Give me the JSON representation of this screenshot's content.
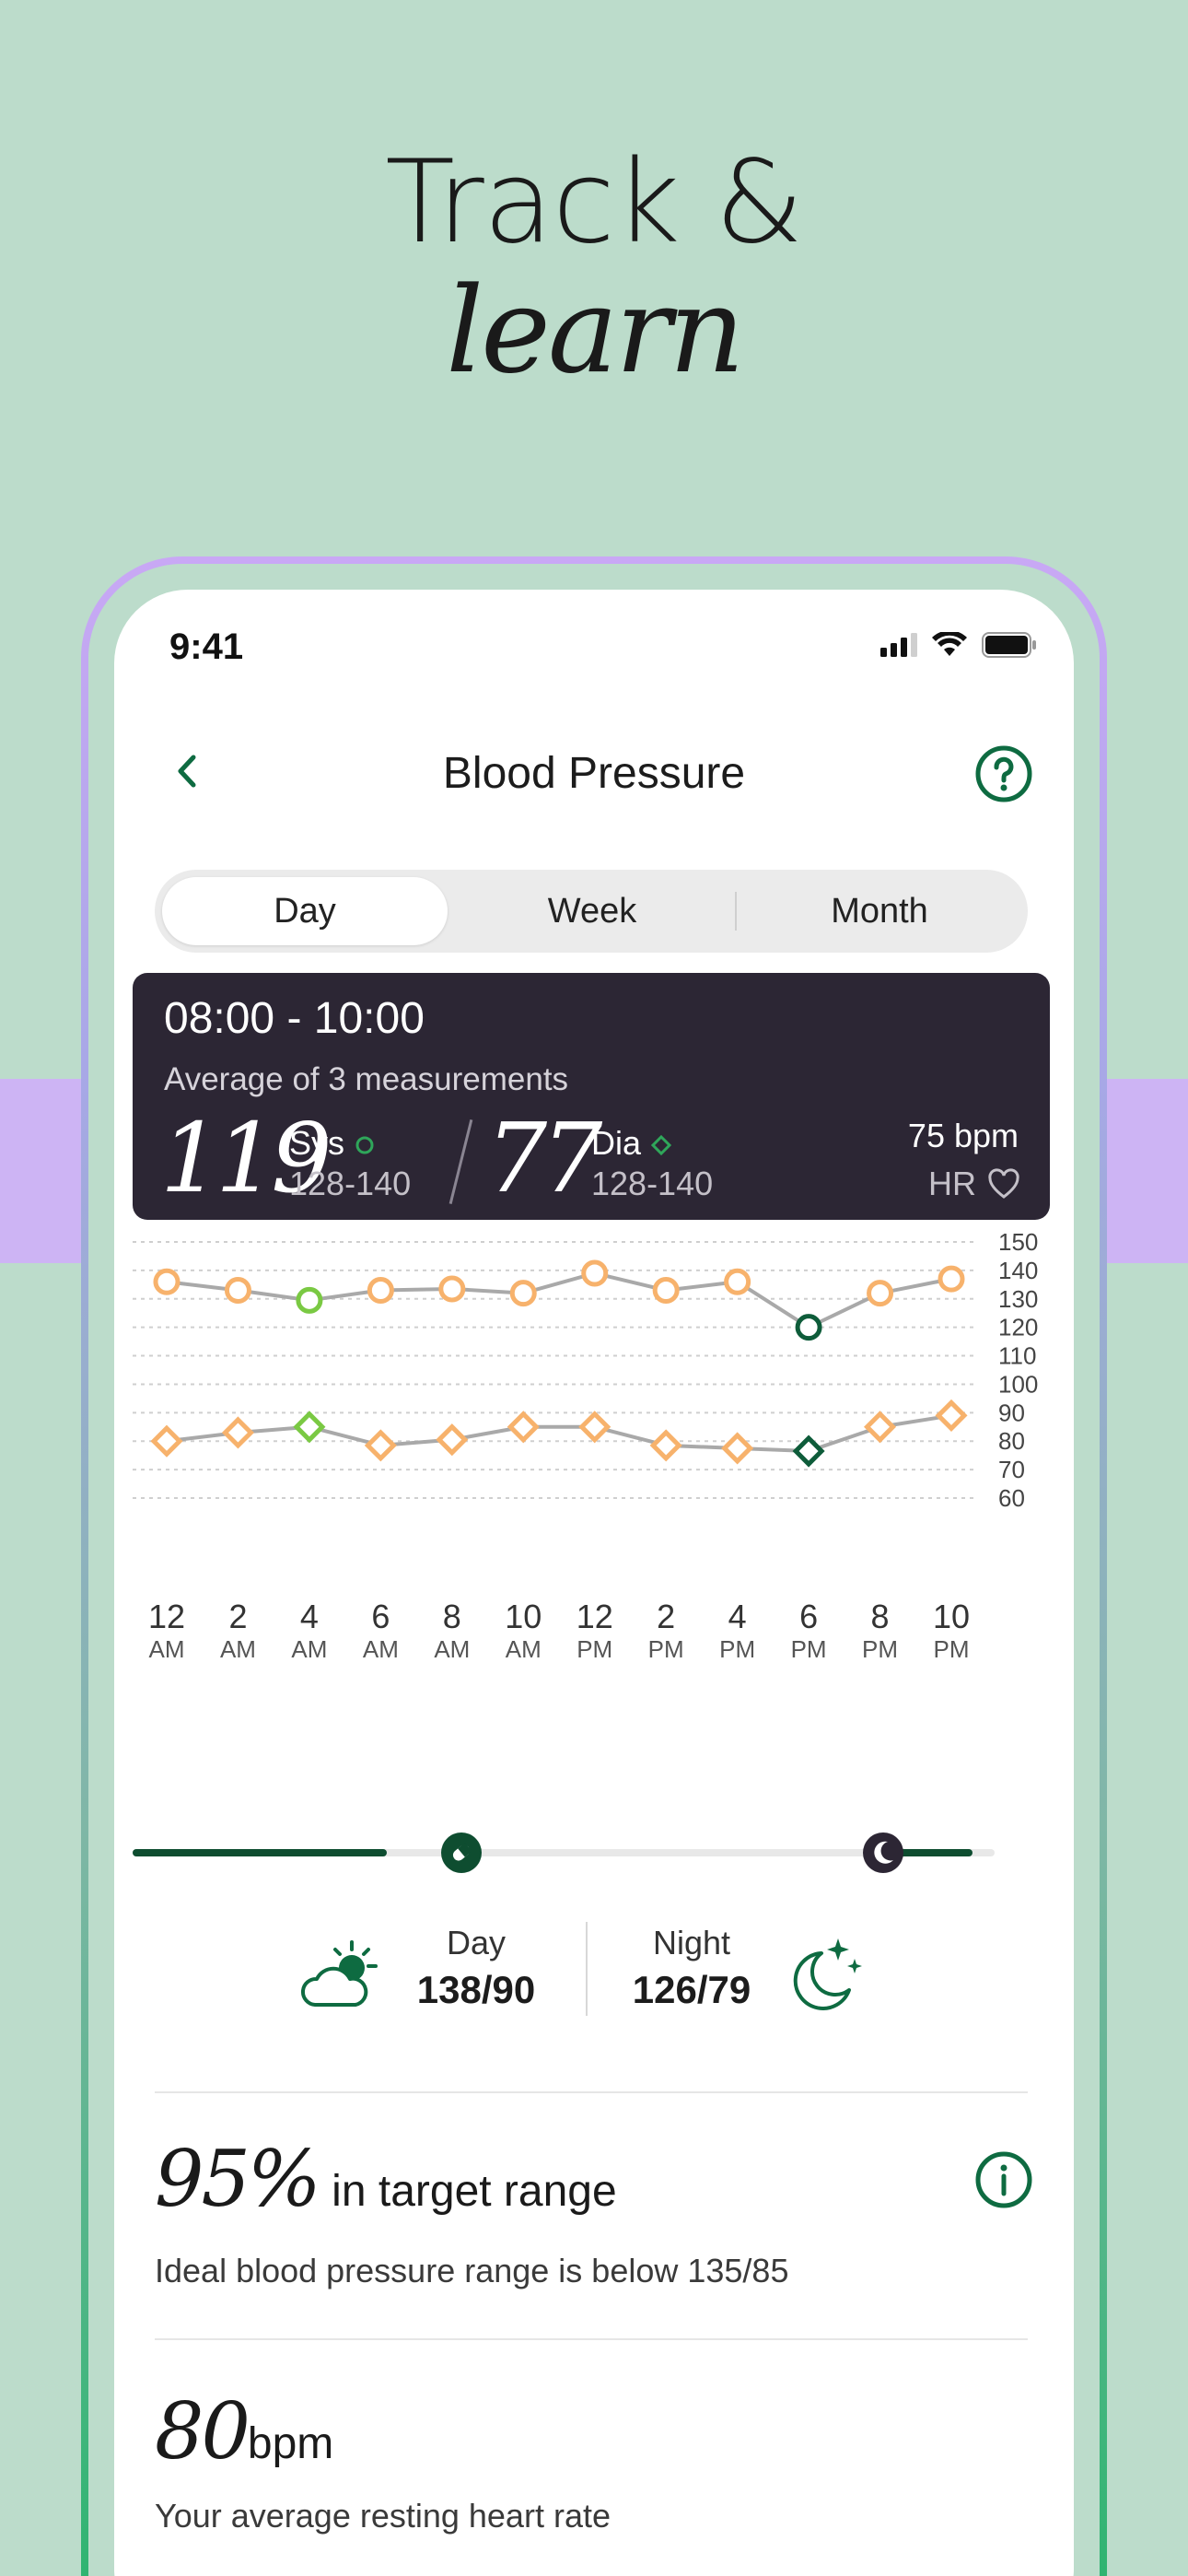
{
  "headline": {
    "line1": "Track &",
    "line2": "learn"
  },
  "status": {
    "time": "9:41",
    "icons": [
      "cellular-icon",
      "wifi-icon",
      "battery-icon"
    ]
  },
  "nav": {
    "title": "Blood Pressure",
    "back_icon": "chevron-left-icon",
    "help_icon": "question-circle-icon"
  },
  "segments": [
    {
      "label": "Day",
      "active": true
    },
    {
      "label": "Week",
      "active": false
    },
    {
      "label": "Month",
      "active": false
    }
  ],
  "summary": {
    "time_range": "08:00 - 10:00",
    "average": "Average of 3 measurements",
    "sys_value": "119",
    "sys_label": "Sys",
    "sys_range": "128-140",
    "dia_value": "77",
    "dia_label": "Dia",
    "dia_range": "128-140",
    "hr_value": "75 bpm",
    "hr_label": "HR"
  },
  "chart_data": {
    "type": "line",
    "x": [
      "12 AM",
      "2 AM",
      "4 AM",
      "6 AM",
      "8 AM",
      "10 AM",
      "12 PM",
      "2 PM",
      "4 PM",
      "6 PM",
      "8 PM",
      "10 PM"
    ],
    "y_ticks": [
      150,
      140,
      130,
      120,
      110,
      100,
      90,
      80,
      70,
      60
    ],
    "ylim": [
      60,
      150
    ],
    "grid": true,
    "series": [
      {
        "values": [
          136,
          133,
          129.5,
          133,
          133.5,
          132,
          139,
          133,
          136,
          120,
          132,
          137
        ],
        "marker": "circle",
        "highlight": [
          {
            "index": 2,
            "color": "#7ac943",
            "kind": "in-range"
          },
          {
            "index": 9,
            "color": "#0e5c3a",
            "kind": "selected"
          }
        ]
      },
      {
        "values": [
          80,
          83,
          85,
          78.5,
          80.5,
          85,
          85,
          78.5,
          77.5,
          76.5,
          85,
          89
        ],
        "marker": "diamond",
        "highlight": [
          {
            "index": 2,
            "color": "#7ac943",
            "kind": "in-range"
          },
          {
            "index": 9,
            "color": "#0e5c3a",
            "kind": "selected"
          }
        ]
      }
    ],
    "colors": {
      "point": "#f7b26c",
      "line": "#a9a9a9",
      "grid": "#cfcfcf"
    }
  },
  "x_axis": [
    {
      "h": "12",
      "ap": "AM"
    },
    {
      "h": "2",
      "ap": "AM"
    },
    {
      "h": "4",
      "ap": "AM"
    },
    {
      "h": "6",
      "ap": "AM"
    },
    {
      "h": "8",
      "ap": "AM"
    },
    {
      "h": "10",
      "ap": "AM"
    },
    {
      "h": "12",
      "ap": "PM"
    },
    {
      "h": "2",
      "ap": "PM"
    },
    {
      "h": "4",
      "ap": "PM"
    },
    {
      "h": "6",
      "ap": "PM"
    },
    {
      "h": "8",
      "ap": "PM"
    },
    {
      "h": "10",
      "ap": "PM"
    }
  ],
  "day_night": {
    "day_label": "Day",
    "day_value": "138/90",
    "night_label": "Night",
    "night_value": "126/79",
    "day_icon": "partly-cloudy-icon",
    "night_icon": "moon-stars-icon"
  },
  "target": {
    "percent": "95%",
    "label": "in target range",
    "description": "Ideal blood pressure range is below 135/85",
    "info_icon": "info-circle-icon"
  },
  "heart_rate": {
    "value": "80",
    "unit": "bpm",
    "description": "Your average resting heart rate"
  },
  "colors": {
    "accent": "#0e6b41",
    "card_bg": "#2c2634",
    "background": "#bcdccb",
    "band": "#cdb4f4"
  }
}
